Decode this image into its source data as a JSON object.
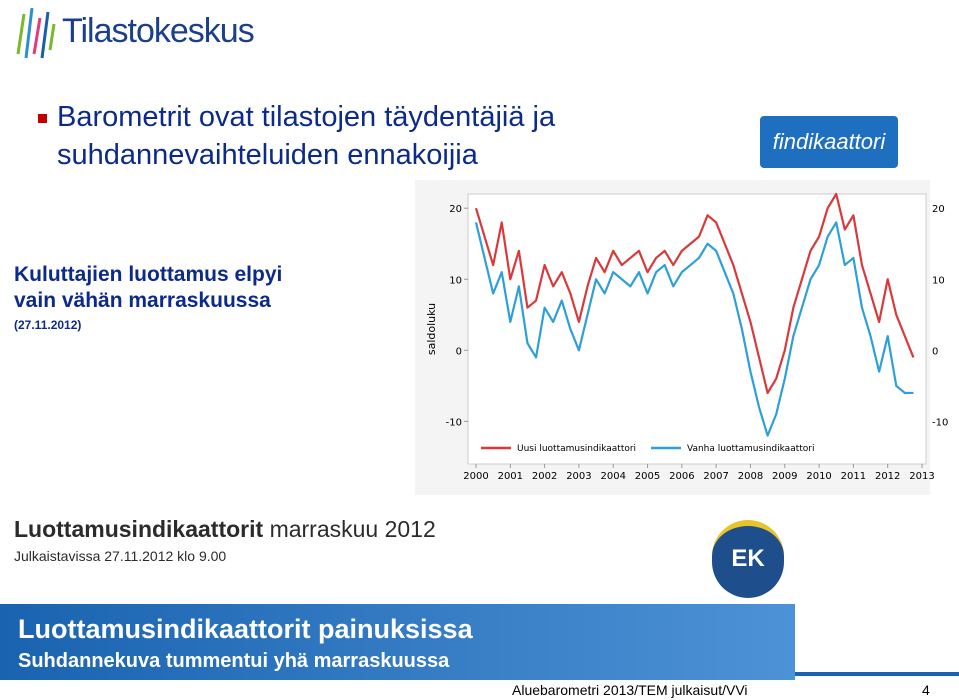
{
  "header": {
    "logo": "Tilastokeskus",
    "title_lines": [
      "Barometrit ovat tilastojen täydentäjiä ja",
      "suhdannevaihteluiden ennakoijia"
    ],
    "badge": "findikaattori"
  },
  "subtitle": {
    "lines": [
      "Kuluttajien luottamus elpyi",
      "vain vähän marraskuussa"
    ],
    "date": "(27.11.2012)"
  },
  "chart_data": {
    "type": "line",
    "y_label": "saldoluku",
    "xlim": [
      2000,
      2013
    ],
    "xticks": [
      2000,
      2001,
      2002,
      2003,
      2004,
      2005,
      2006,
      2007,
      2008,
      2009,
      2010,
      2011,
      2012,
      2013
    ],
    "ylim": [
      -16,
      22
    ],
    "yticks": [
      -10,
      0,
      10,
      20
    ],
    "x": [
      2000,
      2000.25,
      2000.5,
      2000.75,
      2001,
      2001.25,
      2001.5,
      2001.75,
      2002,
      2002.25,
      2002.5,
      2002.75,
      2003,
      2003.25,
      2003.5,
      2003.75,
      2004,
      2004.25,
      2004.5,
      2004.75,
      2005,
      2005.25,
      2005.5,
      2005.75,
      2006,
      2006.25,
      2006.5,
      2006.75,
      2007,
      2007.25,
      2007.5,
      2007.75,
      2008,
      2008.25,
      2008.5,
      2008.75,
      2009,
      2009.25,
      2009.5,
      2009.75,
      2010,
      2010.25,
      2010.5,
      2010.75,
      2011,
      2011.25,
      2011.5,
      2011.75,
      2012,
      2012.25,
      2012.5,
      2012.75
    ],
    "series": [
      {
        "name": "Uusi luottamusindikaattori",
        "color": "#d9393a",
        "values": [
          20,
          16,
          12,
          18,
          10,
          14,
          6,
          7,
          12,
          9,
          11,
          8,
          4,
          9,
          13,
          11,
          14,
          12,
          13,
          14,
          11,
          13,
          14,
          12,
          14,
          15,
          16,
          19,
          18,
          15,
          12,
          8,
          4,
          -1,
          -6,
          -4,
          0,
          6,
          10,
          14,
          16,
          20,
          22,
          17,
          19,
          12,
          8,
          4,
          10,
          5,
          2,
          -1
        ]
      },
      {
        "name": "Vanha luottamusindikaattori",
        "color": "#2e9fd8",
        "values": [
          18,
          13,
          8,
          11,
          4,
          9,
          1,
          -1,
          6,
          4,
          7,
          3,
          0,
          5,
          10,
          8,
          11,
          10,
          9,
          11,
          8,
          11,
          12,
          9,
          11,
          12,
          13,
          15,
          14,
          11,
          8,
          3,
          -3,
          -8,
          -12,
          -9,
          -4,
          2,
          6,
          10,
          12,
          16,
          18,
          12,
          13,
          6,
          2,
          -3,
          2,
          -5,
          -6,
          -6
        ]
      }
    ]
  },
  "release": {
    "title_bold": "Luottamusindikaattorit",
    "title_rest": "marraskuu 2012",
    "embargo": "Julkaistavissa 27.11.2012 klo 9.00",
    "logo": "EK"
  },
  "banner": {
    "title": "Luottamusindikaattorit painuksissa",
    "subtitle": "Suhdannekuva tummentui yhä marraskuussa"
  },
  "footer": {
    "source": "Aluebarometri 2013/TEM julkaisut/VVi",
    "page": "4"
  }
}
